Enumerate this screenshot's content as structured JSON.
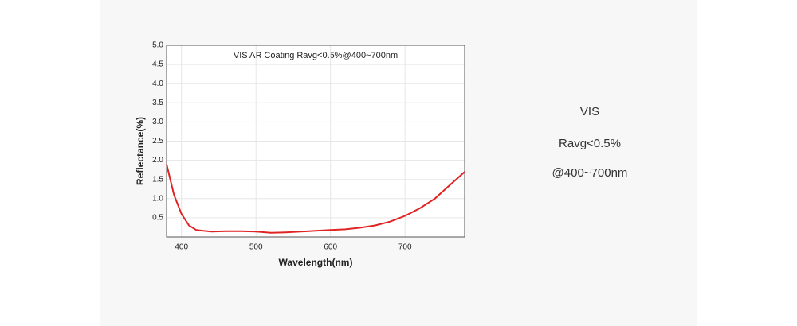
{
  "chart_data": {
    "type": "line",
    "title": "VIS AR Coating Ravg<0.5%@400~700nm",
    "x_label": "Wavelength(nm)",
    "y_label": "Reflectance(%)",
    "x": [
      380,
      390,
      400,
      410,
      420,
      440,
      460,
      480,
      500,
      520,
      540,
      560,
      580,
      600,
      620,
      640,
      660,
      680,
      700,
      720,
      740,
      760,
      780
    ],
    "series": [
      {
        "name": "Reflectance",
        "color": "#e02424",
        "values": [
          1.9,
          1.1,
          0.6,
          0.3,
          0.18,
          0.14,
          0.15,
          0.15,
          0.14,
          0.11,
          0.12,
          0.14,
          0.16,
          0.18,
          0.2,
          0.24,
          0.3,
          0.4,
          0.55,
          0.75,
          1.0,
          1.35,
          1.7
        ]
      }
    ],
    "xlim": [
      380,
      780
    ],
    "xticks": [
      400,
      500,
      600,
      700
    ],
    "ylim": [
      0,
      5
    ],
    "yticks": [
      0.5,
      {
        "value": 1,
        "label": "1.0"
      },
      1.5,
      {
        "value": 2,
        "label": "2.0"
      },
      2.5,
      {
        "value": 3,
        "label": "3.0"
      },
      3.5,
      {
        "value": 4,
        "label": "4.0"
      },
      4.5,
      {
        "value": 5,
        "label": "5.0"
      }
    ],
    "grid": true
  },
  "description": [
    "VIS",
    "Ravg<0.5%",
    "@400~700nm"
  ]
}
